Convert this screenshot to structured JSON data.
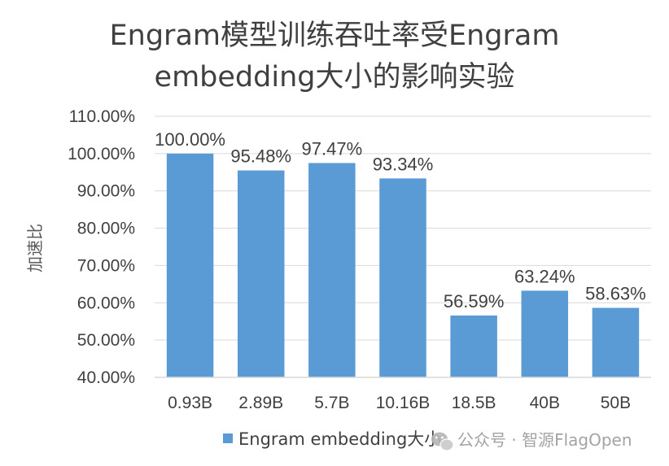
{
  "chart_data": {
    "type": "bar",
    "title_lines": [
      "Engram模型训练吞吐率受Engram",
      "embedding大小的影响实验"
    ],
    "ylabel": "加速比",
    "categories": [
      "0.93B",
      "2.89B",
      "5.7B",
      "10.16B",
      "18.5B",
      "40B",
      "50B"
    ],
    "series": [
      {
        "name": "Engram embedding大小",
        "values": [
          100.0,
          95.48,
          97.47,
          93.34,
          56.59,
          63.24,
          58.63
        ],
        "labels": [
          "100.00%",
          "95.48%",
          "97.47%",
          "93.34%",
          "56.59%",
          "63.24%",
          "58.63%"
        ],
        "color": "#5b9bd5"
      }
    ],
    "highlight_label_index": 0,
    "highlight_color": "#ff0000",
    "ylim": [
      40,
      110
    ],
    "yticks": [
      40,
      50,
      60,
      70,
      80,
      90,
      100,
      110
    ],
    "ytick_labels": [
      "40.00%",
      "50.00%",
      "60.00%",
      "70.00%",
      "80.00%",
      "90.00%",
      "100.00%",
      "110.00%"
    ],
    "grid": true,
    "legend_position": "bottom"
  },
  "watermark": {
    "text": "公众号 · 智源FlagOpen",
    "icon": "wechat-icon"
  }
}
